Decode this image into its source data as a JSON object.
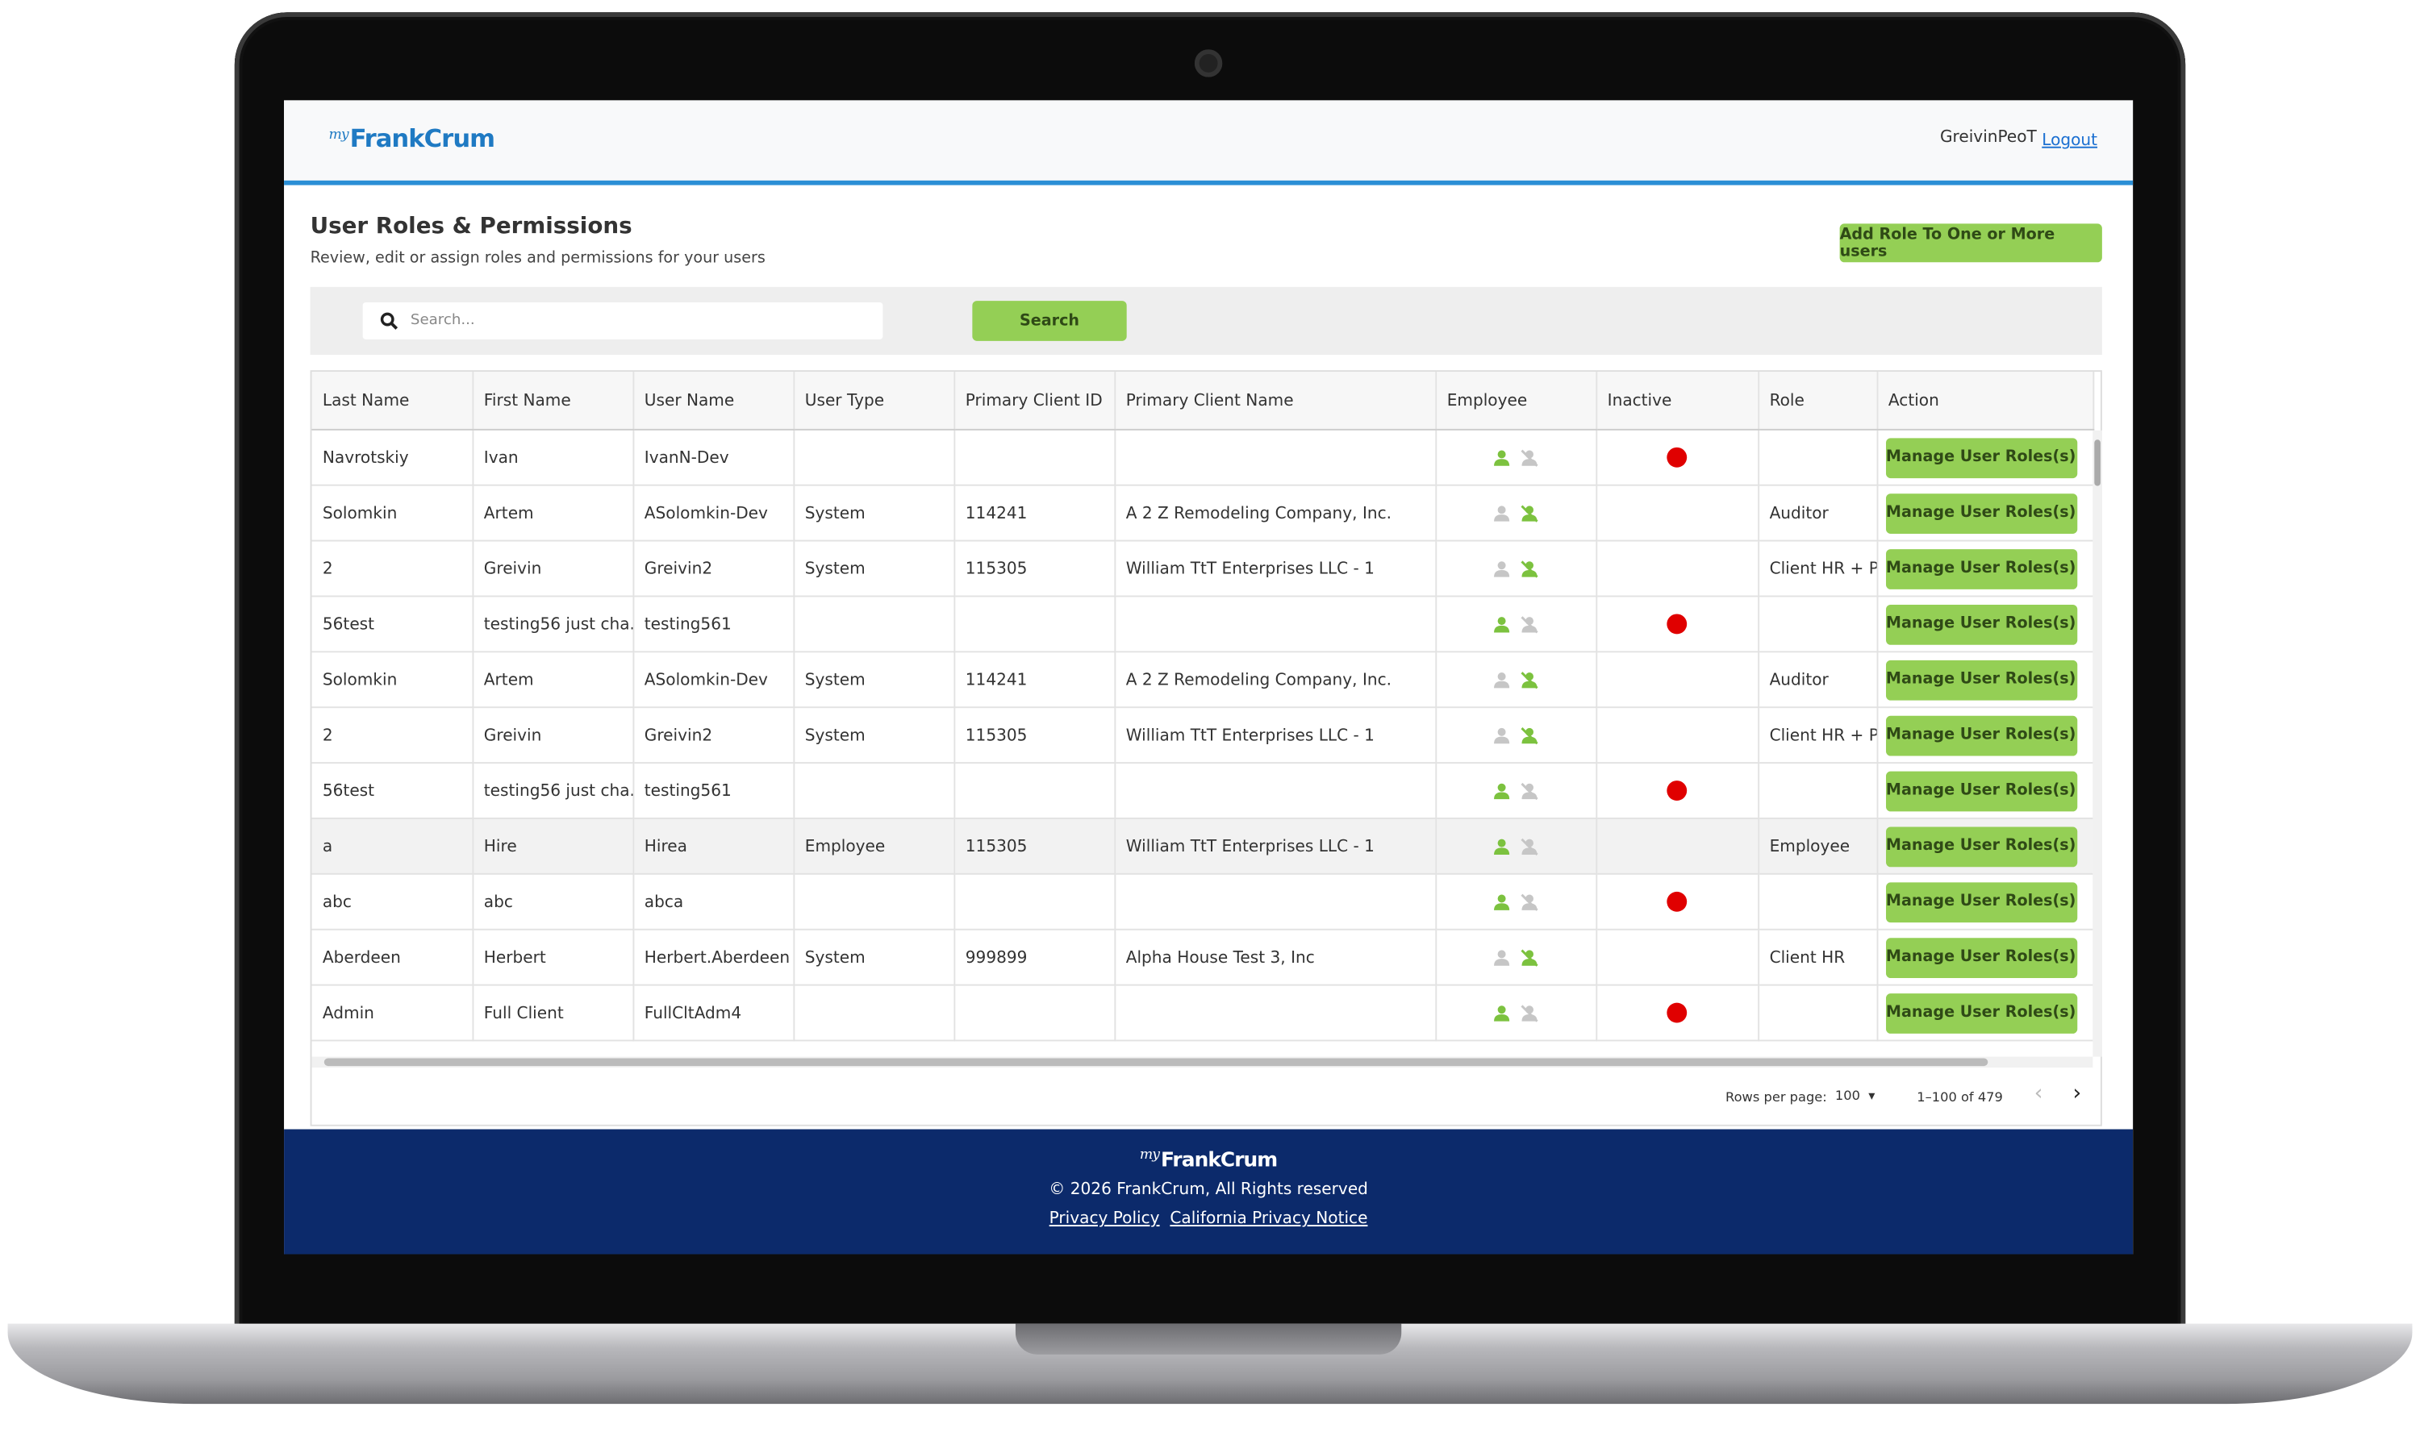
{
  "header": {
    "logo_prefix": "my",
    "logo": "FrankCrum",
    "username": "GreivinPeoT",
    "logout": "Logout"
  },
  "page": {
    "title": "User Roles & Permissions",
    "subtitle": "Review, edit or assign roles and permissions for your users",
    "add_button": "Add Role To One or More users",
    "search_placeholder": "Search...",
    "search_button": "Search"
  },
  "table": {
    "columns": [
      "Last Name",
      "First Name",
      "User Name",
      "User Type",
      "Primary Client ID",
      "Primary Client Name",
      "Employee",
      "Inactive",
      "Role",
      "Action"
    ],
    "action_label": "Manage User Roles(s)",
    "rows": [
      {
        "last_name": "Navrotskiy",
        "first_name": "Ivan",
        "user_name": "IvanN-Dev",
        "employee_active": true,
        "inactive": true
      },
      {
        "last_name": "Solomkin",
        "first_name": "Artem",
        "user_name": "ASolomkin-Dev",
        "user_type": "System",
        "client_id": "114241",
        "client_name": "A 2 Z Remodeling Company, Inc.",
        "role": "Auditor",
        "employee_active": false,
        "inactive": false
      },
      {
        "last_name": "2",
        "first_name": "Greivin",
        "user_name": "Greivin2",
        "user_type": "System",
        "client_id": "115305",
        "client_name": "William TtT Enterprises LLC - 1",
        "role": "Client HR + PR",
        "employee_active": false,
        "inactive": false
      },
      {
        "last_name": "56test",
        "first_name": "testing56 just cha...",
        "user_name": "testing561",
        "employee_active": true,
        "inactive": true
      },
      {
        "last_name": "Solomkin",
        "first_name": "Artem",
        "user_name": "ASolomkin-Dev",
        "user_type": "System",
        "client_id": "114241",
        "client_name": "A 2 Z Remodeling Company, Inc.",
        "role": "Auditor",
        "employee_active": false,
        "inactive": false
      },
      {
        "last_name": "2",
        "first_name": "Greivin",
        "user_name": "Greivin2",
        "user_type": "System",
        "client_id": "115305",
        "client_name": "William TtT Enterprises LLC - 1",
        "role": "Client HR + PR",
        "employee_active": false,
        "inactive": false
      },
      {
        "last_name": "56test",
        "first_name": "testing56 just cha...",
        "user_name": "testing561",
        "employee_active": true,
        "inactive": true
      },
      {
        "last_name": "a",
        "first_name": "Hire",
        "user_name": "Hirea",
        "user_type": "Employee",
        "client_id": "115305",
        "client_name": "William TtT Enterprises LLC - 1",
        "role": "Employee",
        "employee_active": true,
        "inactive": false
      },
      {
        "last_name": "abc",
        "first_name": "abc",
        "user_name": "abca",
        "employee_active": true,
        "inactive": true
      },
      {
        "last_name": "Aberdeen",
        "first_name": "Herbert",
        "user_name": "Herbert.Aberdeen",
        "user_type": "System",
        "client_id": "999899",
        "client_name": "Alpha House Test 3, Inc",
        "role": "Client HR",
        "employee_active": false,
        "inactive": false
      },
      {
        "last_name": "Admin",
        "first_name": "Full Client",
        "user_name": "FullCltAdm4",
        "employee_active": true,
        "inactive": true
      }
    ]
  },
  "pagination": {
    "rows_per_page_label": "Rows per page:",
    "rows_per_page": 100,
    "range": "1–100 of 479"
  },
  "footer": {
    "logo_prefix": "my",
    "logo": "FrankCrum",
    "copyright": "© 2026 FrankCrum, All Rights reserved",
    "links": [
      "Privacy Policy",
      "California Privacy Notice"
    ]
  }
}
